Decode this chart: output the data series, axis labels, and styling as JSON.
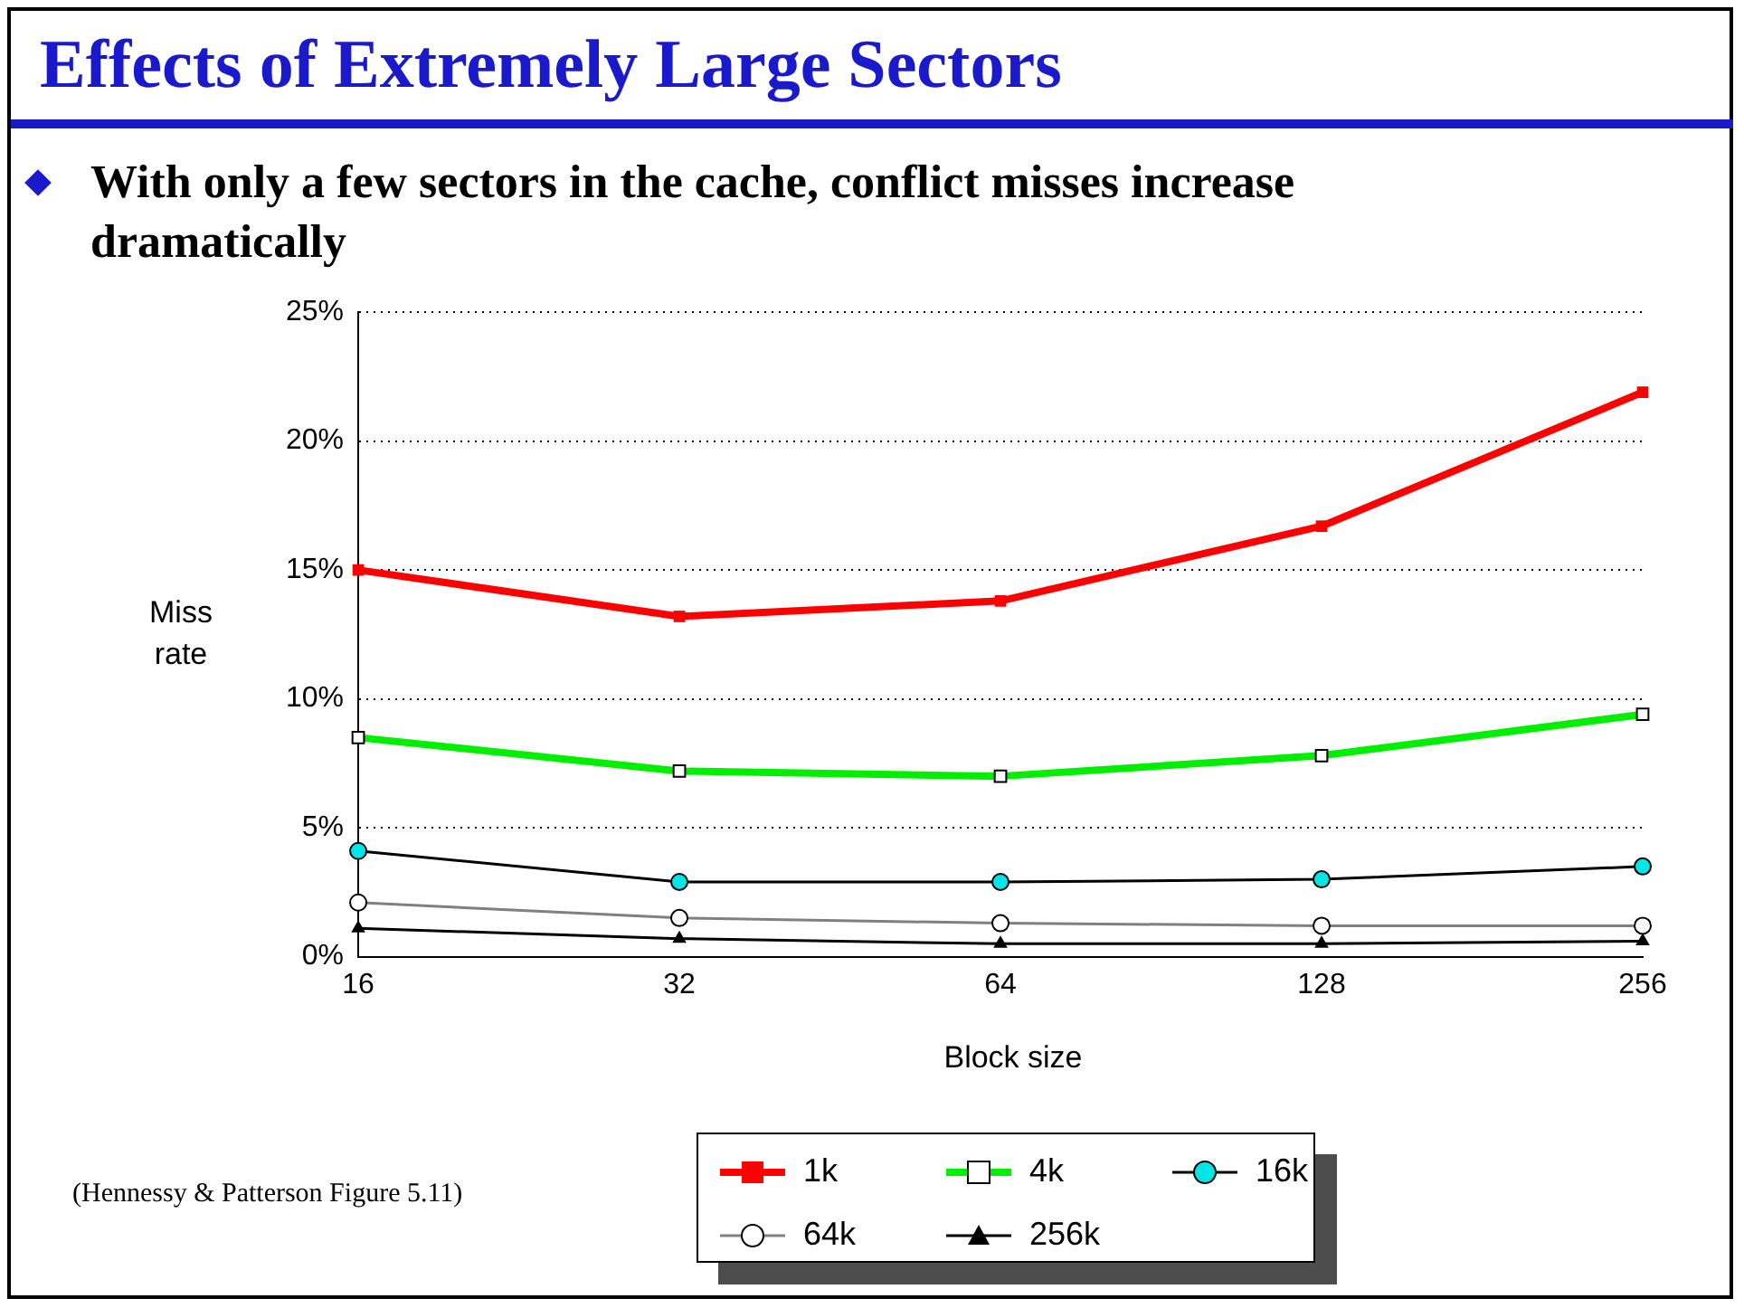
{
  "chart_data": {
    "type": "line",
    "title": "Effects of Extremely Large Sectors",
    "subtitle": "With only a few sectors in the cache, conflict misses increase dramatically",
    "xlabel": "Block size",
    "ylabel": "Miss rate",
    "annotations": [
      "(Hennessy & Patterson Figure 5.11)"
    ],
    "categories": [
      "16",
      "32",
      "64",
      "128",
      "256"
    ],
    "series": [
      {
        "name": "1k",
        "color": "#ff0000",
        "marker": "square",
        "colors": [
          "#ff0000",
          "#ff0000",
          "#ff0000",
          "#ff0000",
          "#ff0000"
        ],
        "values": [
          15.0,
          13.2,
          13.8,
          16.7,
          21.9
        ]
      },
      {
        "name": "4k",
        "color": "#00ee00",
        "marker": "square",
        "colors": [
          "#ffffff",
          "#ffffff",
          "#ffffff",
          "#ffffff",
          "#ffffff"
        ],
        "values": [
          8.5,
          7.2,
          7.0,
          7.8,
          9.4
        ]
      },
      {
        "name": "16k",
        "color": "#000000",
        "marker": "circle",
        "colors": [
          "#00e5e5",
          "#00e5e5",
          "#00e5e5",
          "#00e5e5",
          "#00e5e5"
        ],
        "values": [
          4.1,
          2.9,
          2.9,
          3.0,
          3.5
        ]
      },
      {
        "name": "64k",
        "color": "#808080",
        "marker": "circle",
        "colors": [
          "#ffffff",
          "#ffffff",
          "#ffffff",
          "#ffffff",
          "#ffffff"
        ],
        "values": [
          2.1,
          1.5,
          1.3,
          1.2,
          1.2
        ]
      },
      {
        "name": "256k",
        "color": "#000000",
        "marker": "triangle",
        "colors": [
          "#000000",
          "#000000",
          "#000000",
          "#000000",
          "#000000"
        ],
        "values": [
          1.1,
          0.7,
          0.5,
          0.5,
          0.6
        ]
      }
    ],
    "ylim": [
      0,
      25
    ],
    "yticks": [
      {
        "value": 0,
        "label": "0%"
      },
      {
        "value": 5,
        "label": "5%"
      },
      {
        "value": 10,
        "label": "10%"
      },
      {
        "value": 15,
        "label": "15%"
      },
      {
        "value": 20,
        "label": "20%"
      },
      {
        "value": 25,
        "label": "25%"
      }
    ],
    "grid": "y",
    "legend": "bottom",
    "line_style": "solid"
  }
}
